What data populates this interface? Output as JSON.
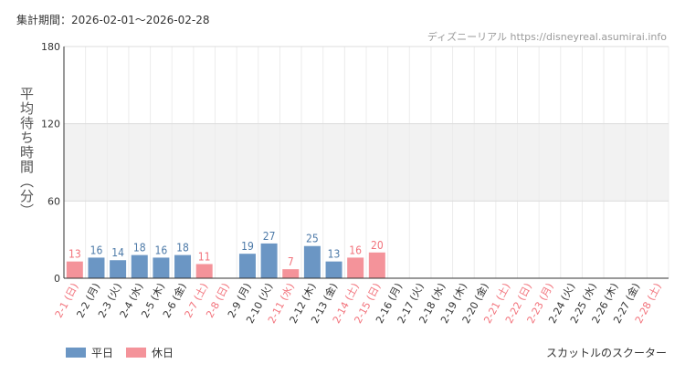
{
  "header": {
    "period": "集計期間：2026-02-01〜2026-02-28",
    "credit": "ディズニーリアル https://disneyreal.asumirai.info"
  },
  "footer": {
    "attraction": "スカットルのスクーター"
  },
  "colors": {
    "weekday": "#6b96c4",
    "holiday": "#f4939a",
    "weekday_label": "#4d7aa8",
    "holiday_label": "#f2727b",
    "band": "#f2f2f2",
    "axis": "#333333"
  },
  "chart_data": {
    "type": "bar",
    "title": "",
    "xlabel": "",
    "ylabel": "平均待ち時間（分）",
    "ylim": [
      0,
      180
    ],
    "yticks": [
      0,
      60,
      120,
      180
    ],
    "shaded_band": [
      60,
      120
    ],
    "legend": {
      "position": "bottom-left",
      "entries": [
        "平日",
        "休日"
      ]
    },
    "categories": [
      "2-1 (日)",
      "2-2 (月)",
      "2-3 (火)",
      "2-4 (水)",
      "2-5 (木)",
      "2-6 (金)",
      "2-7 (土)",
      "2-8 (日)",
      "2-9 (月)",
      "2-10 (火)",
      "2-11 (水)",
      "2-12 (木)",
      "2-13 (金)",
      "2-14 (土)",
      "2-15 (日)",
      "2-16 (月)",
      "2-17 (火)",
      "2-18 (水)",
      "2-19 (木)",
      "2-20 (金)",
      "2-21 (土)",
      "2-22 (日)",
      "2-23 (月)",
      "2-24 (火)",
      "2-25 (水)",
      "2-26 (木)",
      "2-27 (金)",
      "2-28 (土)"
    ],
    "day_type": [
      "holiday",
      "weekday",
      "weekday",
      "weekday",
      "weekday",
      "weekday",
      "holiday",
      "holiday",
      "weekday",
      "weekday",
      "holiday",
      "weekday",
      "weekday",
      "holiday",
      "holiday",
      "weekday",
      "weekday",
      "weekday",
      "weekday",
      "weekday",
      "holiday",
      "holiday",
      "holiday",
      "weekday",
      "weekday",
      "weekday",
      "weekday",
      "holiday"
    ],
    "values": [
      13,
      16,
      14,
      18,
      16,
      18,
      11,
      null,
      19,
      27,
      7,
      25,
      13,
      16,
      20,
      null,
      null,
      null,
      null,
      null,
      null,
      null,
      null,
      null,
      null,
      null,
      null,
      null
    ]
  }
}
